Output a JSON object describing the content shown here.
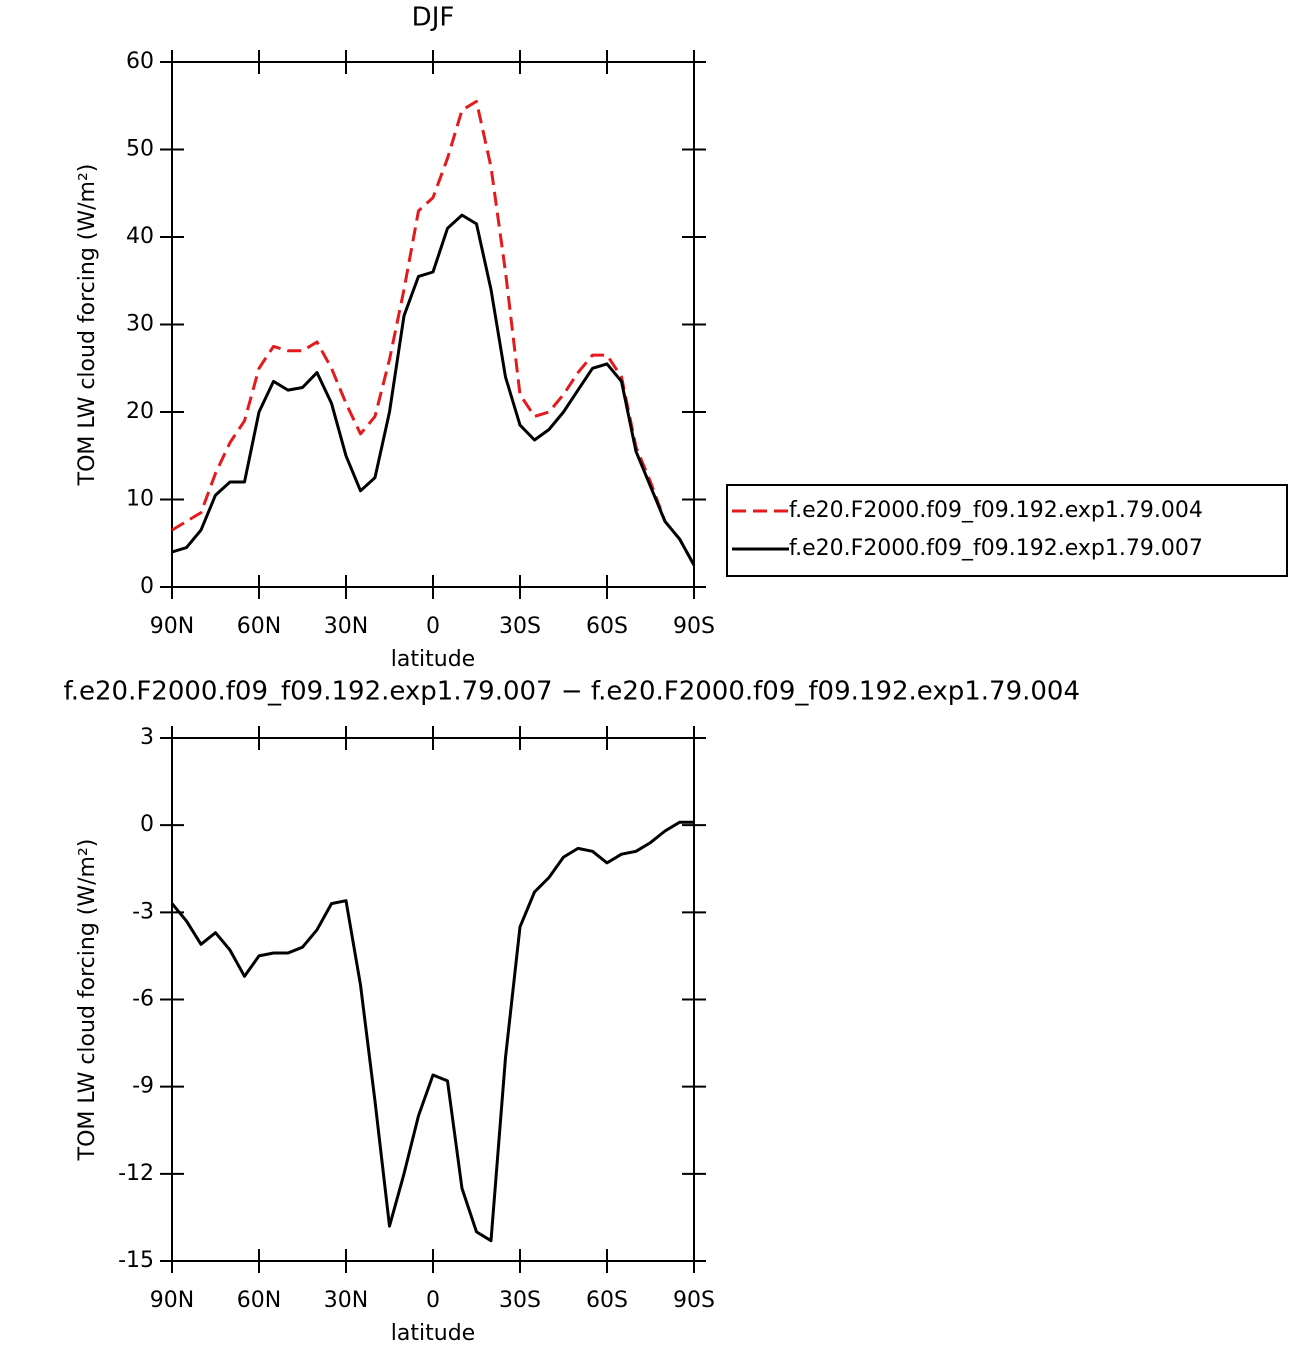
{
  "chart_data": [
    {
      "type": "line",
      "title": "DJF",
      "xlabel": "latitude",
      "ylabel": "TOM LW cloud forcing (W/m²)",
      "x": [
        90,
        85,
        80,
        75,
        70,
        65,
        60,
        55,
        50,
        45,
        40,
        35,
        30,
        25,
        20,
        15,
        10,
        5,
        0,
        -5,
        -10,
        -15,
        -20,
        -25,
        -30,
        -35,
        -40,
        -45,
        -50,
        -55,
        -60,
        -65,
        -70,
        -75,
        -80,
        -85,
        -90
      ],
      "xlim": [
        90,
        -90
      ],
      "xticks": [
        {
          "value": 90,
          "label": "90N"
        },
        {
          "value": 60,
          "label": "60N"
        },
        {
          "value": 30,
          "label": "30N"
        },
        0,
        {
          "value": -30,
          "label": "30S"
        },
        {
          "value": -60,
          "label": "60S"
        },
        {
          "value": -90,
          "label": "90S"
        }
      ],
      "ylim": [
        0,
        60
      ],
      "yticks": [
        0,
        10,
        20,
        30,
        40,
        50,
        60
      ],
      "legend": "right",
      "series": [
        {
          "name": "f.e20.F2000.f09_f09.192.exp1.79.004",
          "color": "#e41a1c",
          "linestyle": "dashed",
          "values": [
            6.5,
            7.5,
            8.5,
            13,
            16.5,
            19,
            25,
            27.5,
            27,
            27,
            28,
            25,
            21,
            17.5,
            19.5,
            26,
            34,
            43,
            44.5,
            49,
            54.5,
            55.5,
            48,
            36,
            22,
            19.5,
            20,
            22,
            24.5,
            26.5,
            26.5,
            24,
            16,
            12,
            7.5,
            5.5,
            2.5
          ]
        },
        {
          "name": "f.e20.F2000.f09_f09.192.exp1.79.007",
          "color": "#000000",
          "linestyle": "solid",
          "values": [
            4,
            4.5,
            6.5,
            10.5,
            12,
            12,
            20,
            23.5,
            22.5,
            22.8,
            24.5,
            21,
            15,
            11,
            12.5,
            20,
            31,
            35.5,
            36,
            41,
            42.5,
            41.5,
            34,
            24,
            18.5,
            16.8,
            18,
            20,
            22.5,
            25,
            25.5,
            23.5,
            15.5,
            11.5,
            7.5,
            5.5,
            2.5
          ]
        }
      ]
    },
    {
      "type": "line",
      "title": "f.e20.F2000.f09_f09.192.exp1.79.007 − f.e20.F2000.f09_f09.192.exp1.79.004",
      "xlabel": "latitude",
      "ylabel": "TOM LW cloud forcing (W/m²)",
      "x": [
        90,
        85,
        80,
        75,
        70,
        65,
        60,
        55,
        50,
        45,
        40,
        35,
        30,
        25,
        20,
        15,
        10,
        5,
        0,
        -5,
        -10,
        -15,
        -20,
        -25,
        -30,
        -35,
        -40,
        -45,
        -50,
        -55,
        -60,
        -65,
        -70,
        -75,
        -80,
        -85,
        -90
      ],
      "xlim": [
        90,
        -90
      ],
      "xticks": [
        {
          "value": 90,
          "label": "90N"
        },
        {
          "value": 60,
          "label": "60N"
        },
        {
          "value": 30,
          "label": "30N"
        },
        0,
        {
          "value": -30,
          "label": "30S"
        },
        {
          "value": -60,
          "label": "60S"
        },
        {
          "value": -90,
          "label": "90S"
        }
      ],
      "ylim": [
        -15,
        3
      ],
      "yticks": [
        -15,
        -12,
        -9,
        -6,
        -3,
        0,
        3
      ],
      "series": [
        {
          "color": "#000000",
          "linestyle": "solid",
          "values": [
            -2.7,
            -3.3,
            -4.1,
            -3.7,
            -4.3,
            -5.2,
            -4.5,
            -4.4,
            -4.4,
            -4.2,
            -3.6,
            -2.7,
            -2.6,
            -5.5,
            -9.5,
            -13.8,
            -12,
            -10,
            -8.6,
            -8.8,
            -12.5,
            -14,
            -14.3,
            -8,
            -3.5,
            -2.3,
            -1.8,
            -1.1,
            -0.8,
            -0.9,
            -1.3,
            -1,
            -0.9,
            -0.6,
            -0.2,
            0.1,
            0.1
          ]
        }
      ]
    }
  ]
}
